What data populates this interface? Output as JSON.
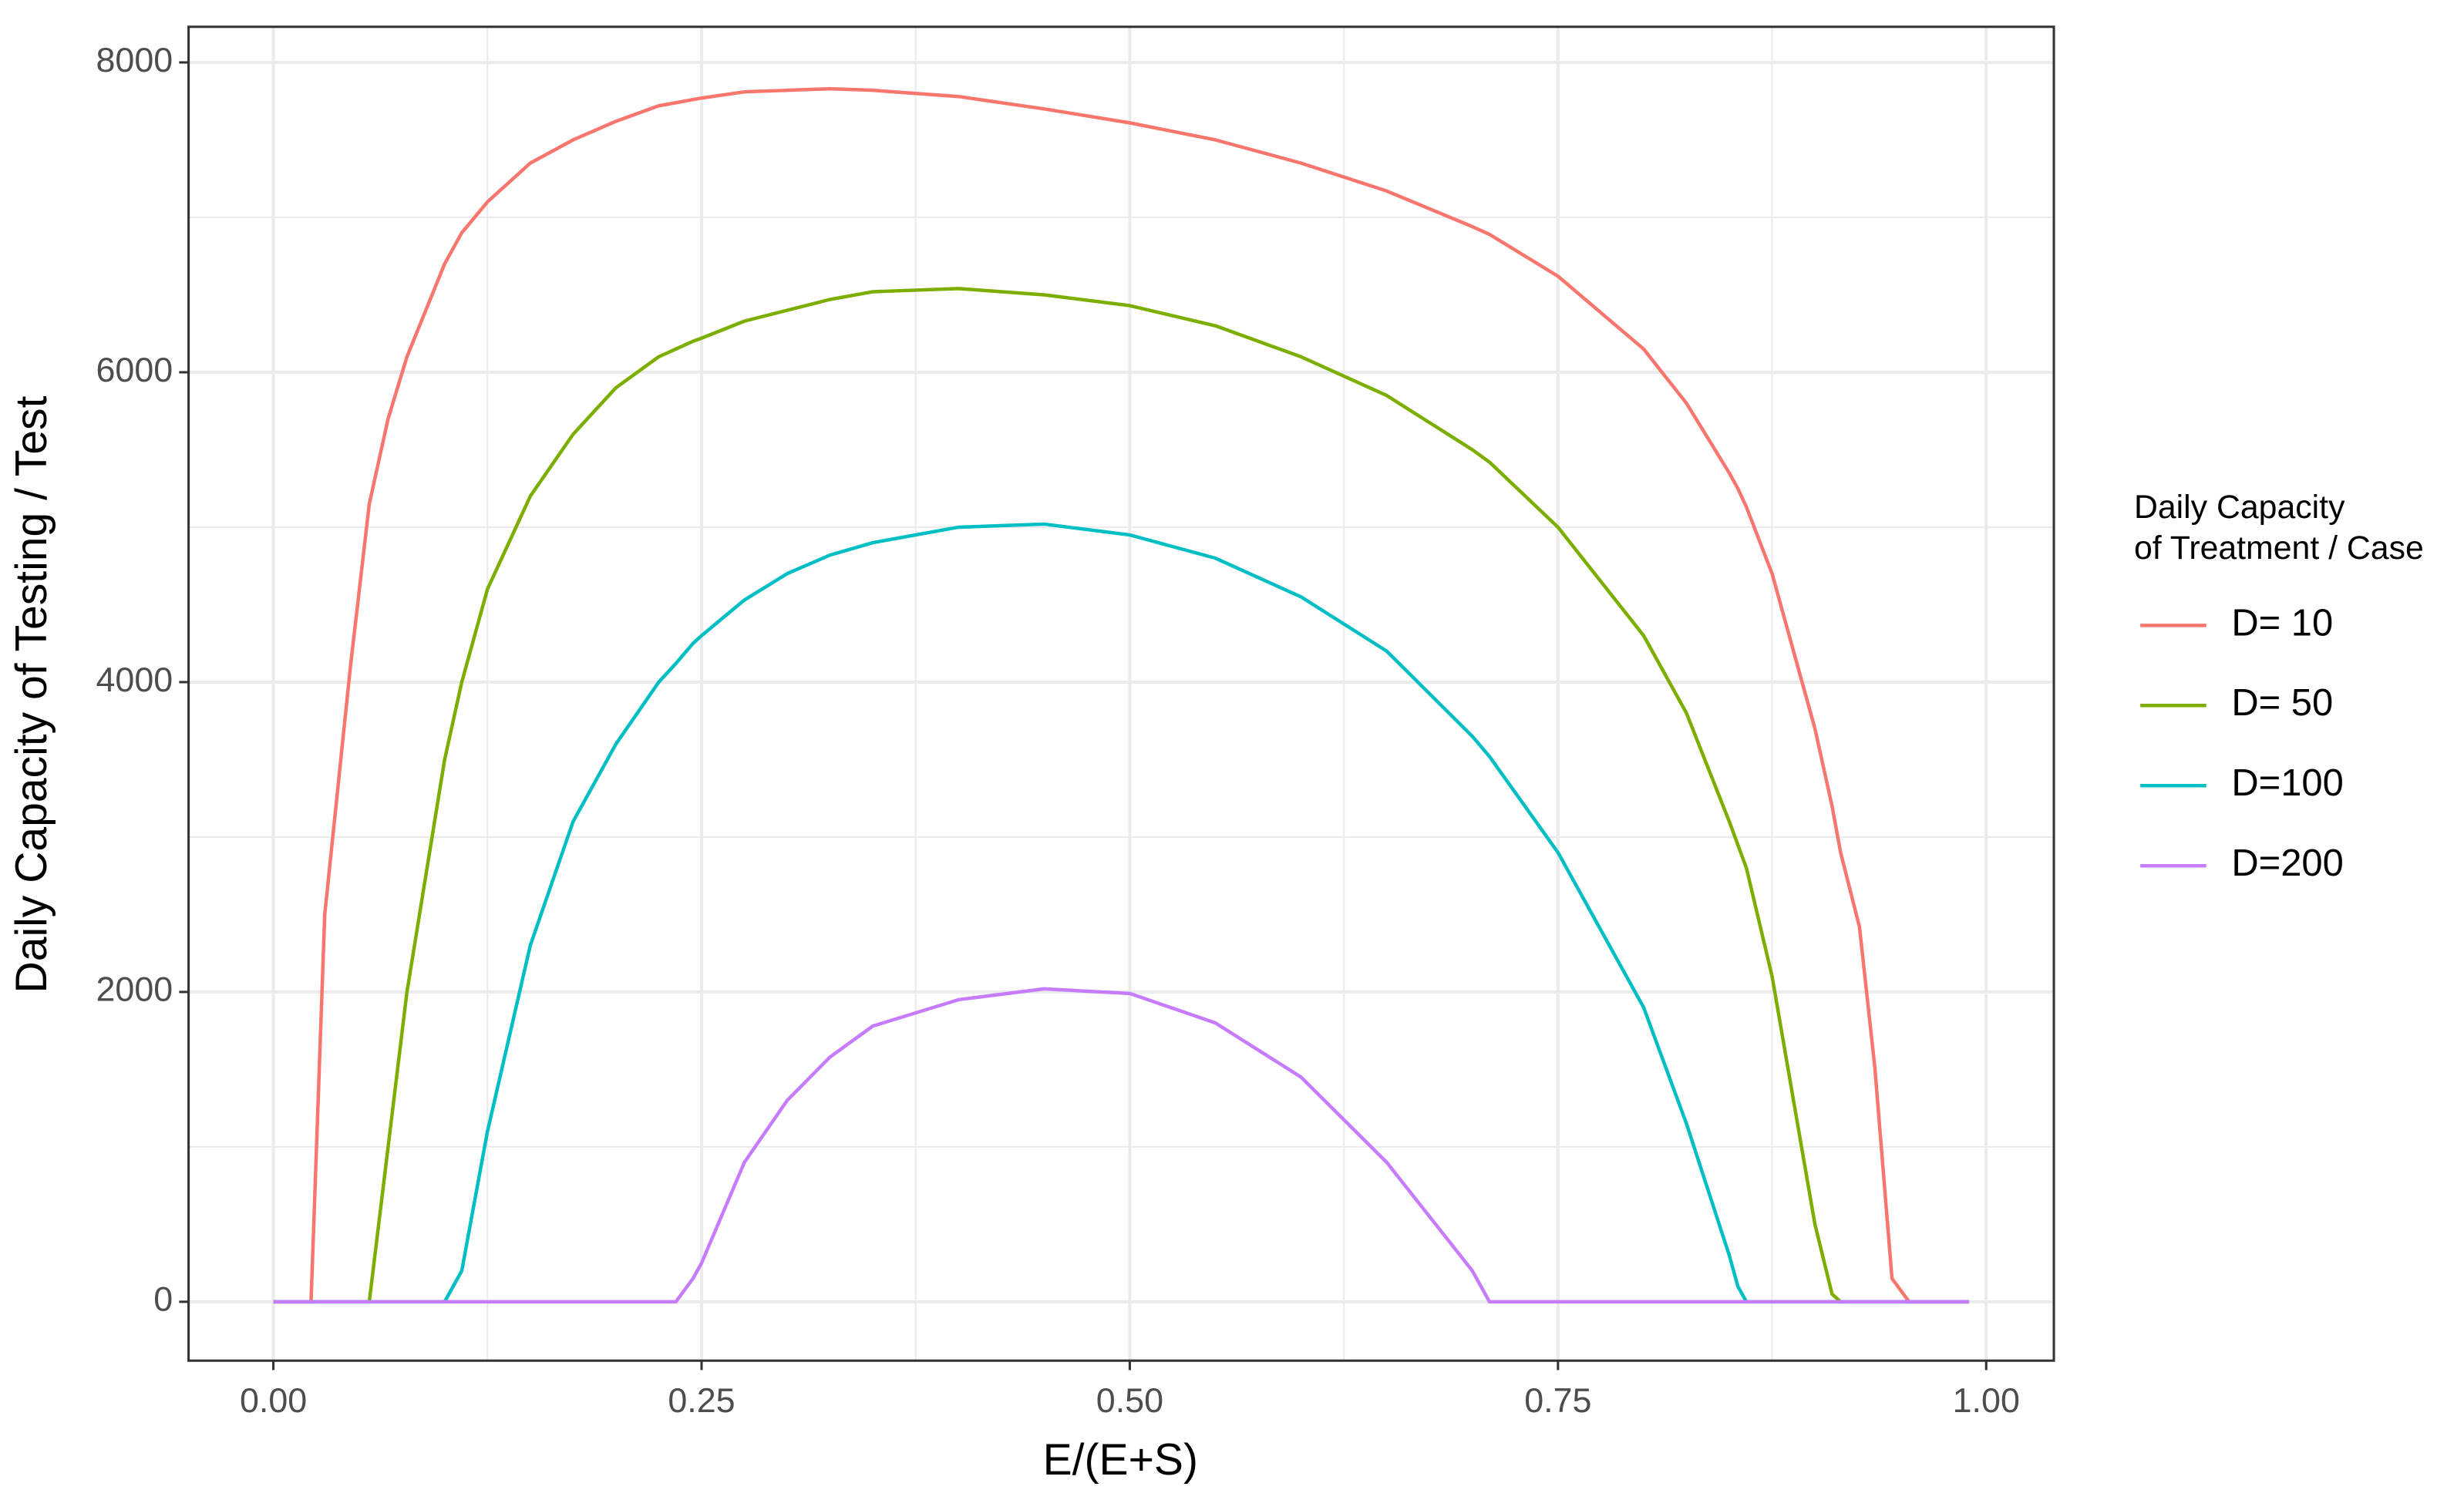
{
  "chart_data": {
    "type": "line",
    "xlabel": "E/(E+S)",
    "ylabel": "Daily Capacity of Testing / Test",
    "legend_title": [
      "Daily Capacity",
      "of Treatment / Case"
    ],
    "legend_position": "right",
    "grid": true,
    "x": [
      0,
      0.022,
      0.03,
      0.045,
      0.056,
      0.067,
      0.078,
      0.1,
      0.11,
      0.125,
      0.15,
      0.175,
      0.2,
      0.225,
      0.235,
      0.245,
      0.25,
      0.275,
      0.3,
      0.325,
      0.35,
      0.4,
      0.45,
      0.5,
      0.55,
      0.6,
      0.65,
      0.7,
      0.71,
      0.75,
      0.8,
      0.825,
      0.85,
      0.855,
      0.86,
      0.875,
      0.9,
      0.91,
      0.915,
      0.926,
      0.935,
      0.945,
      0.955,
      0.99
    ],
    "series": [
      {
        "name": "D= 10",
        "color": "#F8766D",
        "values": [
          0,
          0,
          2500,
          4100,
          5150,
          5700,
          6100,
          6700,
          6900,
          7100,
          7350,
          7500,
          7620,
          7720,
          7740,
          7760,
          7770,
          7810,
          7820,
          7830,
          7820,
          7780,
          7700,
          7610,
          7500,
          7350,
          7170,
          6940,
          6890,
          6620,
          6150,
          5800,
          5350,
          5250,
          5130,
          4700,
          3700,
          3200,
          2900,
          2420,
          1510,
          150,
          0,
          0
        ]
      },
      {
        "name": "D= 50",
        "color": "#7CAE00",
        "values": [
          0,
          0,
          0,
          0,
          0,
          1000,
          2000,
          3500,
          4000,
          4600,
          5200,
          5600,
          5900,
          6100,
          6150,
          6200,
          6220,
          6330,
          6400,
          6470,
          6520,
          6540,
          6500,
          6430,
          6300,
          6100,
          5850,
          5500,
          5420,
          5000,
          4300,
          3800,
          3100,
          2950,
          2800,
          2100,
          500,
          50,
          0,
          0,
          0,
          0,
          0,
          0
        ]
      },
      {
        "name": "D=100",
        "color": "#00BFC4",
        "values": [
          0,
          0,
          0,
          0,
          0,
          0,
          0,
          0,
          200,
          1100,
          2300,
          3100,
          3600,
          4000,
          4120,
          4250,
          4300,
          4530,
          4700,
          4820,
          4900,
          5000,
          5020,
          4950,
          4800,
          4550,
          4200,
          3650,
          3520,
          2900,
          1900,
          1150,
          300,
          100,
          0,
          0,
          0,
          0,
          0,
          0,
          0,
          0,
          0,
          0
        ]
      },
      {
        "name": "D=200",
        "color": "#C77CFF",
        "values": [
          0,
          0,
          0,
          0,
          0,
          0,
          0,
          0,
          0,
          0,
          0,
          0,
          0,
          0,
          0,
          150,
          250,
          900,
          1300,
          1580,
          1780,
          1950,
          2020,
          1990,
          1800,
          1450,
          900,
          200,
          0,
          0,
          0,
          0,
          0,
          0,
          0,
          0,
          0,
          0,
          0,
          0,
          0,
          0,
          0,
          0
        ]
      }
    ],
    "xlim": [
      -0.0495,
      1.0395
    ],
    "ylim": [
      -380,
      8230
    ],
    "xticks": [
      {
        "value": 0,
        "label": "0.00"
      },
      {
        "value": 0.25,
        "label": "0.25"
      },
      {
        "value": 0.5,
        "label": "0.50"
      },
      {
        "value": 0.75,
        "label": "0.75"
      },
      {
        "value": 1,
        "label": "1.00"
      }
    ],
    "yticks": [
      0,
      2000,
      4000,
      6000,
      8000
    ]
  }
}
